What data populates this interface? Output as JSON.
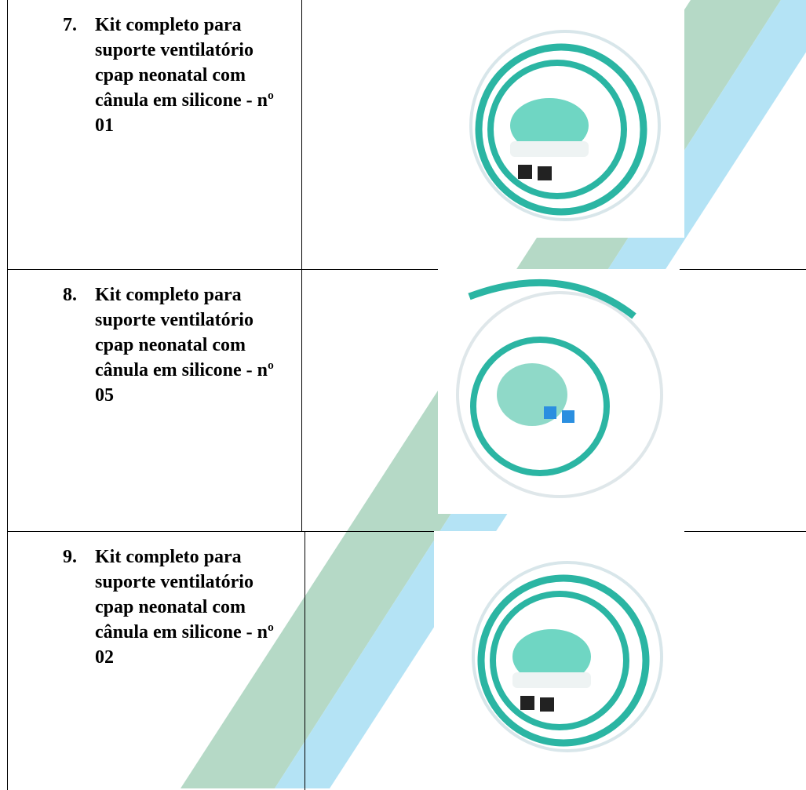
{
  "table": {
    "rows": [
      {
        "number": "7.",
        "text": "Kit completo para suporte ventilatório cpap neonatal com cânula em silicone - nº 01"
      },
      {
        "number": "8.",
        "text": "Kit completo para suporte ventilatório cpap neonatal com cânula em silicone - nº 05"
      },
      {
        "number": "9.",
        "text": "Kit completo para suporte ventilatório cpap neonatal com cânula em silicone - nº 02"
      }
    ]
  }
}
